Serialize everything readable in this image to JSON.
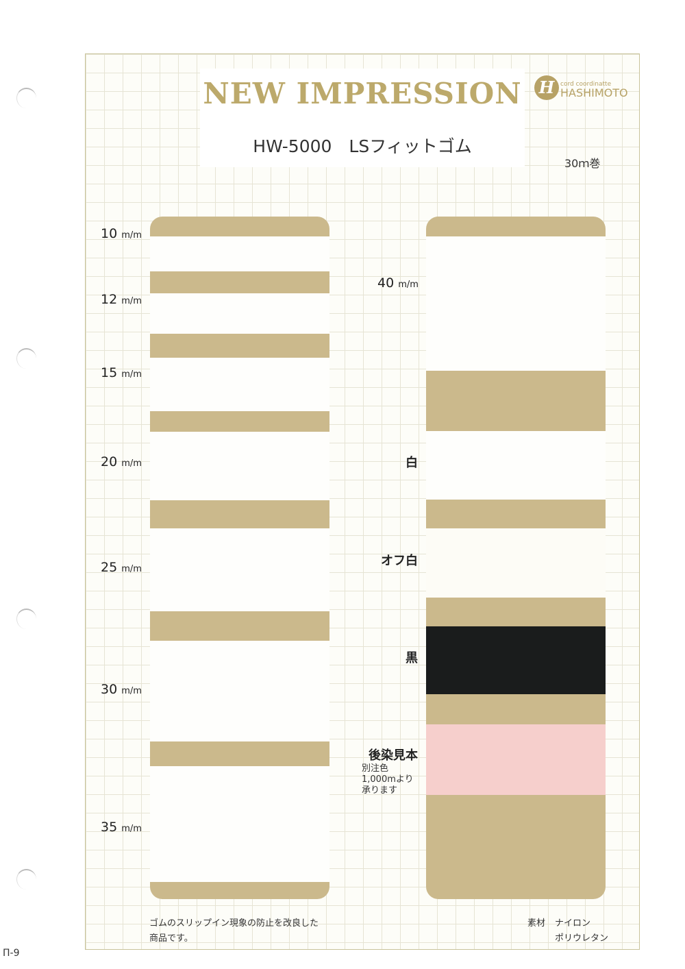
{
  "header": {
    "title": "NEW IMPRESSION",
    "product": "HW-5000　LSフィットゴム",
    "roll": "30ｍ巻"
  },
  "logo": {
    "tagline": "cord coordinatte",
    "name": "HASHIMOTO",
    "mark": "H"
  },
  "widths": [
    {
      "size": "10",
      "unit": "m/m"
    },
    {
      "size": "12",
      "unit": "m/m"
    },
    {
      "size": "15",
      "unit": "m/m"
    },
    {
      "size": "20",
      "unit": "m/m"
    },
    {
      "size": "25",
      "unit": "m/m"
    },
    {
      "size": "30",
      "unit": "m/m"
    },
    {
      "size": "35",
      "unit": "m/m"
    },
    {
      "size": "40",
      "unit": "m/m"
    }
  ],
  "colors": [
    {
      "label": "白",
      "hex": "#fefefc"
    },
    {
      "label": "オフ白",
      "hex": "#fdfcf6"
    },
    {
      "label": "黒",
      "hex": "#1a1c1c"
    },
    {
      "label": "後染見本",
      "hex": "#f6cfcc"
    }
  ],
  "custom_note": [
    "別注色",
    "1,000mより",
    "承ります"
  ],
  "description": [
    "ゴムのスリップイン現象の防止を改良した",
    "商品です。"
  ],
  "material": {
    "label": "素材",
    "items": [
      "ナイロン",
      "ポリウレタン"
    ]
  },
  "page_number": "Π-9",
  "card_color": "#cbb98c"
}
